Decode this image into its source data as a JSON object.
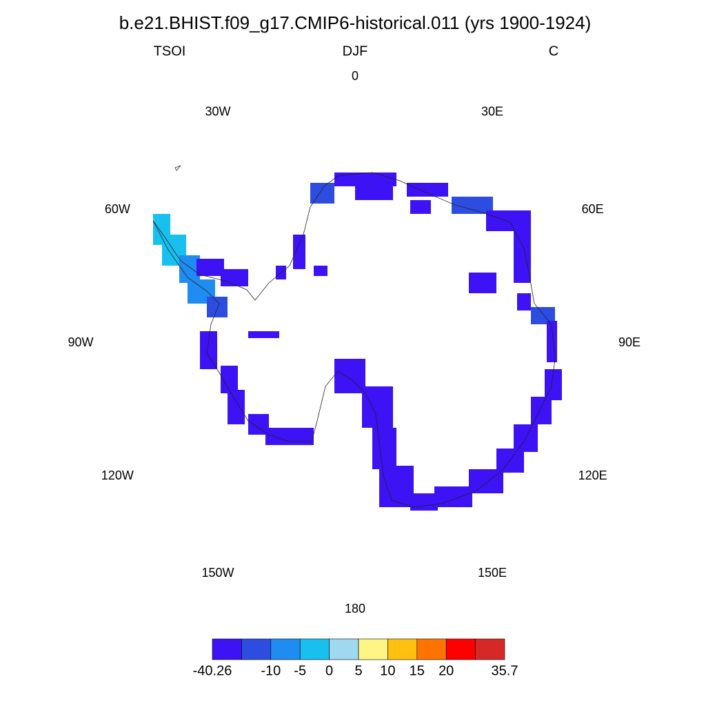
{
  "header": {
    "title": "b.e21.BHIST.f09_g17.CMIP6-historical.011 (yrs 1900-1924)",
    "left": "TSOI",
    "center": "DJF",
    "right": "C"
  },
  "map": {
    "longitude_labels": [
      "0",
      "30E",
      "60E",
      "90E",
      "120E",
      "150E",
      "180",
      "150W",
      "120W",
      "90W",
      "60W",
      "30W"
    ]
  },
  "colorbar": {
    "colors": [
      "#3d12f5",
      "#2c4de0",
      "#1e8cf0",
      "#18c0f0",
      "#a0d8f0",
      "#fff585",
      "#ffc010",
      "#ff7300",
      "#ff0000",
      "#d72828"
    ],
    "boundaries": [
      -40.26,
      null,
      -10,
      -5,
      0,
      5,
      10,
      15,
      20,
      null,
      35.7
    ]
  }
}
